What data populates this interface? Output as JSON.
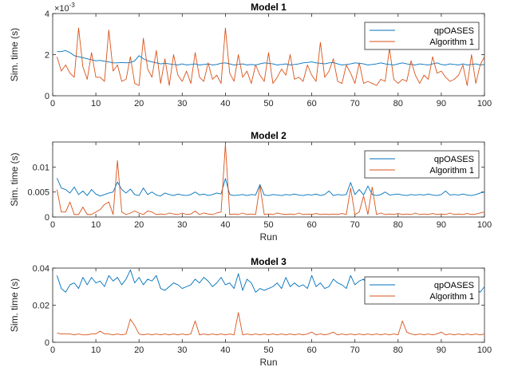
{
  "colors": {
    "qpoases": "#0072BD",
    "algorithm1": "#D95319",
    "axis": "#262626",
    "legend_border": "#262626"
  },
  "chart_data": [
    {
      "type": "line",
      "title": "Model 1",
      "xlabel": "",
      "ylabel": "Sim. time (s)",
      "xlim": [
        0,
        100
      ],
      "ylim": [
        0,
        4
      ],
      "y_exponent_label": "×10",
      "y_exponent_power": "-3",
      "xticks": [
        0,
        10,
        20,
        30,
        40,
        50,
        60,
        70,
        80,
        90,
        100
      ],
      "yticks": [
        0,
        2,
        4
      ],
      "xtick_labels": [
        "0",
        "10",
        "20",
        "30",
        "40",
        "50",
        "60",
        "70",
        "80",
        "90",
        "100"
      ],
      "ytick_labels": [
        "0",
        "2",
        "4"
      ],
      "grid": false,
      "legend_position": "top-right",
      "x": [
        1,
        2,
        3,
        4,
        5,
        6,
        7,
        8,
        9,
        10,
        11,
        12,
        13,
        14,
        15,
        16,
        17,
        18,
        19,
        20,
        21,
        22,
        23,
        24,
        25,
        26,
        27,
        28,
        29,
        30,
        31,
        32,
        33,
        34,
        35,
        36,
        37,
        38,
        39,
        40,
        41,
        42,
        43,
        44,
        45,
        46,
        47,
        48,
        49,
        50,
        51,
        52,
        53,
        54,
        55,
        56,
        57,
        58,
        59,
        60,
        61,
        62,
        63,
        64,
        65,
        66,
        67,
        68,
        69,
        70,
        71,
        72,
        73,
        74,
        75,
        76,
        77,
        78,
        79,
        80,
        81,
        82,
        83,
        84,
        85,
        86,
        87,
        88,
        89,
        90,
        91,
        92,
        93,
        94,
        95,
        96,
        97,
        98,
        99,
        100
      ],
      "series": [
        {
          "name": "qpOASES",
          "values": [
            2.15,
            2.15,
            2.2,
            2.1,
            1.95,
            1.9,
            1.85,
            1.8,
            1.75,
            1.7,
            1.72,
            1.68,
            1.65,
            1.6,
            1.6,
            1.62,
            1.6,
            1.62,
            1.7,
            1.95,
            1.8,
            1.7,
            1.65,
            1.6,
            1.55,
            1.58,
            1.55,
            1.52,
            1.5,
            1.55,
            1.5,
            1.52,
            1.55,
            1.5,
            1.52,
            1.55,
            1.5,
            1.52,
            1.58,
            1.6,
            1.55,
            1.5,
            1.52,
            1.55,
            1.5,
            1.52,
            1.5,
            1.55,
            1.6,
            1.58,
            1.55,
            1.5,
            1.52,
            1.55,
            1.5,
            1.52,
            1.55,
            1.6,
            1.62,
            1.65,
            1.6,
            1.58,
            1.55,
            1.6,
            1.62,
            1.55,
            1.5,
            1.52,
            1.55,
            1.6,
            1.58,
            1.55,
            1.5,
            1.52,
            1.55,
            1.6,
            1.55,
            1.52,
            1.5,
            1.55,
            1.6,
            1.55,
            1.52,
            1.5,
            1.55,
            1.52,
            1.5,
            1.55,
            1.6,
            1.52,
            1.5,
            1.55,
            1.52,
            1.5,
            1.55,
            1.5,
            1.52,
            1.55,
            1.5,
            1.52
          ]
        },
        {
          "name": "Algorithm 1",
          "values": [
            1.9,
            1.2,
            1.5,
            1.1,
            0.9,
            3.3,
            1.4,
            0.8,
            2.1,
            0.9,
            0.9,
            0.7,
            3.2,
            1.2,
            1.5,
            0.7,
            0.8,
            1.9,
            0.6,
            0.5,
            2.8,
            1.3,
            0.9,
            2.2,
            0.6,
            1.8,
            0.5,
            2.0,
            1.0,
            0.7,
            1.2,
            0.6,
            2.1,
            0.9,
            0.7,
            1.6,
            0.8,
            1.0,
            0.6,
            3.3,
            1.1,
            0.7,
            2.0,
            0.9,
            1.2,
            0.6,
            1.5,
            1.0,
            0.7,
            2.1,
            0.6,
            0.9,
            1.3,
            1.0,
            2.0,
            0.8,
            0.9,
            0.7,
            1.5,
            1.0,
            0.7,
            2.6,
            0.9,
            1.2,
            1.8,
            0.7,
            0.6,
            1.5,
            1.1,
            0.6,
            1.6,
            0.6,
            0.7,
            0.6,
            0.5,
            0.8,
            0.7,
            2.3,
            0.8,
            0.6,
            0.8,
            0.7,
            1.7,
            1.0,
            0.6,
            1.0,
            0.8,
            1.9,
            1.1,
            1.2,
            0.9,
            0.7,
            0.8,
            1.0,
            1.5,
            0.5,
            2.0,
            0.6,
            1.5,
            1.9
          ]
        }
      ]
    },
    {
      "type": "line",
      "title": "Model 2",
      "xlabel": "Run",
      "ylabel": "Sim. time (s)",
      "xlim": [
        0,
        100
      ],
      "ylim": [
        0,
        0.015
      ],
      "xticks": [
        0,
        10,
        20,
        30,
        40,
        50,
        60,
        70,
        80,
        90,
        100
      ],
      "yticks": [
        0,
        0.005,
        0.01
      ],
      "xtick_labels": [
        "0",
        "10",
        "20",
        "30",
        "40",
        "50",
        "60",
        "70",
        "80",
        "90",
        "100"
      ],
      "ytick_labels": [
        "0",
        "0.005",
        "0.01"
      ],
      "grid": false,
      "legend_position": "top-right",
      "x": [
        1,
        2,
        3,
        4,
        5,
        6,
        7,
        8,
        9,
        10,
        11,
        12,
        13,
        14,
        15,
        16,
        17,
        18,
        19,
        20,
        21,
        22,
        23,
        24,
        25,
        26,
        27,
        28,
        29,
        30,
        31,
        32,
        33,
        34,
        35,
        36,
        37,
        38,
        39,
        40,
        41,
        42,
        43,
        44,
        45,
        46,
        47,
        48,
        49,
        50,
        51,
        52,
        53,
        54,
        55,
        56,
        57,
        58,
        59,
        60,
        61,
        62,
        63,
        64,
        65,
        66,
        67,
        68,
        69,
        70,
        71,
        72,
        73,
        74,
        75,
        76,
        77,
        78,
        79,
        80,
        81,
        82,
        83,
        84,
        85,
        86,
        87,
        88,
        89,
        90,
        91,
        92,
        93,
        94,
        95,
        96,
        97,
        98,
        99,
        100
      ],
      "series": [
        {
          "name": "qpOASES",
          "values": [
            0.0078,
            0.0058,
            0.0055,
            0.0048,
            0.006,
            0.0045,
            0.0052,
            0.0043,
            0.0055,
            0.0046,
            0.0042,
            0.0045,
            0.0048,
            0.005,
            0.007,
            0.0055,
            0.0048,
            0.0056,
            0.0045,
            0.0043,
            0.0058,
            0.0045,
            0.005,
            0.0044,
            0.0042,
            0.0048,
            0.0045,
            0.0043,
            0.0046,
            0.0044,
            0.0043,
            0.0045,
            0.005,
            0.0044,
            0.0046,
            0.0043,
            0.0045,
            0.0048,
            0.0046,
            0.0077,
            0.0045,
            0.0043,
            0.0044,
            0.0045,
            0.0043,
            0.0045,
            0.0044,
            0.0065,
            0.0044,
            0.0043,
            0.0045,
            0.0044,
            0.0043,
            0.0045,
            0.0044,
            0.0046,
            0.0044,
            0.0043,
            0.0045,
            0.0044,
            0.0046,
            0.0043,
            0.0045,
            0.0052,
            0.0043,
            0.0045,
            0.0044,
            0.0045,
            0.0069,
            0.0045,
            0.0055,
            0.0044,
            0.0062,
            0.0045,
            0.0043,
            0.0045,
            0.005,
            0.0044,
            0.0045,
            0.0046,
            0.0044,
            0.0043,
            0.0045,
            0.0044,
            0.0045,
            0.0044,
            0.0046,
            0.0044,
            0.0043,
            0.0045,
            0.0052,
            0.0044,
            0.0045,
            0.0044,
            0.0046,
            0.0044,
            0.0043,
            0.0045,
            0.0048,
            0.005
          ]
        },
        {
          "name": "Algorithm 1",
          "values": [
            0.0055,
            0.001,
            0.001,
            0.003,
            0.0005,
            0.0005,
            0.002,
            0.0005,
            0.0005,
            0.001,
            0.0015,
            0.0025,
            0.003,
            0.0005,
            0.0113,
            0.001,
            0.0005,
            0.0008,
            0.0012,
            0.0008,
            0.0005,
            0.0012,
            0.001,
            0.0005,
            0.0006,
            0.0005,
            0.0008,
            0.0006,
            0.0005,
            0.0008,
            0.0005,
            0.0006,
            0.0012,
            0.0005,
            0.0008,
            0.0006,
            0.0005,
            0.0008,
            0.001,
            0.0146,
            0.0005,
            0.0006,
            0.0005,
            0.0008,
            0.0005,
            0.0006,
            0.0005,
            0.0063,
            0.0005,
            0.0006,
            0.0005,
            0.0008,
            0.0006,
            0.0005,
            0.0006,
            0.0005,
            0.0008,
            0.0005,
            0.0006,
            0.0005,
            0.0007,
            0.0005,
            0.0006,
            0.0005,
            0.0006,
            0.0005,
            0.0007,
            0.0005,
            0.0058,
            0.0005,
            0.001,
            0.0042,
            0.0005,
            0.006,
            0.0005,
            0.0008,
            0.0005,
            0.0006,
            0.0005,
            0.0007,
            0.0005,
            0.0006,
            0.0005,
            0.0008,
            0.0005,
            0.0006,
            0.0005,
            0.0007,
            0.0005,
            0.0006,
            0.0005,
            0.0008,
            0.0005,
            0.0006,
            0.0005,
            0.0007,
            0.0005,
            0.0006,
            0.0008,
            0.001
          ]
        }
      ]
    },
    {
      "type": "line",
      "title": "Model 3",
      "xlabel": "Run",
      "ylabel": "Sim. time (s)",
      "xlim": [
        0,
        100
      ],
      "ylim": [
        0,
        0.04
      ],
      "xticks": [
        0,
        10,
        20,
        30,
        40,
        50,
        60,
        70,
        80,
        90,
        100
      ],
      "yticks": [
        0,
        0.02,
        0.04
      ],
      "xtick_labels": [
        "0",
        "10",
        "20",
        "30",
        "40",
        "50",
        "60",
        "70",
        "80",
        "90",
        "100"
      ],
      "ytick_labels": [
        "0",
        "0.02",
        "0.04"
      ],
      "grid": false,
      "legend_position": "top-right",
      "x": [
        1,
        2,
        3,
        4,
        5,
        6,
        7,
        8,
        9,
        10,
        11,
        12,
        13,
        14,
        15,
        16,
        17,
        18,
        19,
        20,
        21,
        22,
        23,
        24,
        25,
        26,
        27,
        28,
        29,
        30,
        31,
        32,
        33,
        34,
        35,
        36,
        37,
        38,
        39,
        40,
        41,
        42,
        43,
        44,
        45,
        46,
        47,
        48,
        49,
        50,
        51,
        52,
        53,
        54,
        55,
        56,
        57,
        58,
        59,
        60,
        61,
        62,
        63,
        64,
        65,
        66,
        67,
        68,
        69,
        70,
        71,
        72,
        73,
        74,
        75,
        76,
        77,
        78,
        79,
        80,
        81,
        82,
        83,
        84,
        85,
        86,
        87,
        88,
        89,
        90,
        91,
        92,
        93,
        94,
        95,
        96,
        97,
        98,
        99,
        100
      ],
      "series": [
        {
          "name": "qpOASES",
          "values": [
            0.036,
            0.029,
            0.027,
            0.031,
            0.032,
            0.029,
            0.035,
            0.031,
            0.035,
            0.032,
            0.033,
            0.03,
            0.036,
            0.033,
            0.035,
            0.031,
            0.034,
            0.039,
            0.032,
            0.035,
            0.031,
            0.034,
            0.033,
            0.036,
            0.029,
            0.028,
            0.03,
            0.032,
            0.031,
            0.029,
            0.03,
            0.031,
            0.034,
            0.032,
            0.035,
            0.033,
            0.03,
            0.032,
            0.035,
            0.031,
            0.032,
            0.029,
            0.037,
            0.028,
            0.034,
            0.032,
            0.027,
            0.029,
            0.028,
            0.029,
            0.03,
            0.032,
            0.029,
            0.035,
            0.03,
            0.032,
            0.03,
            0.031,
            0.029,
            0.036,
            0.03,
            0.032,
            0.029,
            0.03,
            0.034,
            0.032,
            0.031,
            0.029,
            0.036,
            0.031,
            0.033,
            0.034,
            0.031,
            0.032,
            0.03,
            0.035,
            0.031,
            0.034,
            0.03,
            0.032,
            0.033,
            0.029,
            0.031,
            0.033,
            0.03,
            0.035,
            0.031,
            0.032,
            0.03,
            0.033,
            0.034,
            0.032,
            0.031,
            0.029,
            0.033,
            0.031,
            0.03,
            0.029,
            0.027,
            0.03
          ]
        },
        {
          "name": "Algorithm 1",
          "values": [
            0.005,
            0.0045,
            0.0045,
            0.0045,
            0.004,
            0.0045,
            0.004,
            0.004,
            0.0045,
            0.0045,
            0.006,
            0.0045,
            0.0045,
            0.004,
            0.0045,
            0.004,
            0.0045,
            0.0125,
            0.009,
            0.0045,
            0.004,
            0.0045,
            0.004,
            0.0045,
            0.004,
            0.0045,
            0.004,
            0.0045,
            0.004,
            0.0045,
            0.004,
            0.0045,
            0.0115,
            0.004,
            0.0045,
            0.004,
            0.0045,
            0.004,
            0.0045,
            0.004,
            0.0045,
            0.004,
            0.016,
            0.004,
            0.0045,
            0.004,
            0.0045,
            0.004,
            0.0045,
            0.004,
            0.0045,
            0.004,
            0.0045,
            0.004,
            0.0045,
            0.004,
            0.0045,
            0.004,
            0.0045,
            0.0055,
            0.004,
            0.0045,
            0.004,
            0.0045,
            0.0055,
            0.004,
            0.0045,
            0.004,
            0.0045,
            0.004,
            0.0045,
            0.004,
            0.0045,
            0.004,
            0.0045,
            0.004,
            0.0045,
            0.004,
            0.0045,
            0.004,
            0.0115,
            0.0055,
            0.0045,
            0.004,
            0.0045,
            0.004,
            0.0045,
            0.004,
            0.0045,
            0.0055,
            0.004,
            0.0045,
            0.004,
            0.0045,
            0.004,
            0.0045,
            0.004,
            0.0045,
            0.004,
            0.0045
          ]
        }
      ]
    }
  ]
}
